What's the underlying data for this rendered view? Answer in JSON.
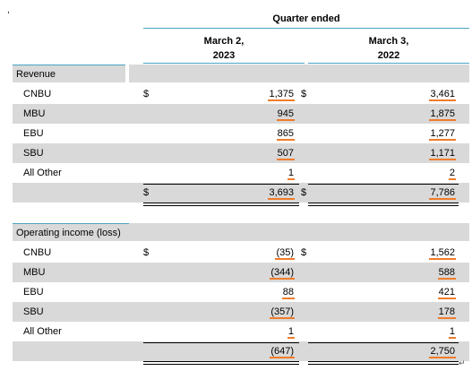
{
  "header": {
    "mark": ",",
    "period_title": "Quarter ended",
    "col1": {
      "line1": "March 2,",
      "line2": "2023"
    },
    "col2": {
      "line1": "March 3,",
      "line2": "2022"
    }
  },
  "revenue": {
    "section_label": "Revenue",
    "rows": [
      {
        "label": "CNBU",
        "d1": "$",
        "v1": "1,375",
        "d2": "$",
        "v2": "3,461"
      },
      {
        "label": "MBU",
        "d1": "",
        "v1": "945",
        "d2": "",
        "v2": "1,875"
      },
      {
        "label": "EBU",
        "d1": "",
        "v1": "865",
        "d2": "",
        "v2": "1,277"
      },
      {
        "label": "SBU",
        "d1": "",
        "v1": "507",
        "d2": "",
        "v2": "1,171"
      },
      {
        "label": "All Other",
        "d1": "",
        "v1": "1",
        "d2": "",
        "v2": "2"
      }
    ],
    "total": {
      "d1": "$",
      "v1": "3,693",
      "d2": "$",
      "v2": "7,786"
    }
  },
  "operating": {
    "section_label": "Operating income (loss)",
    "rows": [
      {
        "label": "CNBU",
        "d1": "$",
        "v1": "(35)",
        "d2": "$",
        "v2": "1,562"
      },
      {
        "label": "MBU",
        "d1": "",
        "v1": "(344)",
        "d2": "",
        "v2": "588"
      },
      {
        "label": "EBU",
        "d1": "",
        "v1": "88",
        "d2": "",
        "v2": "421"
      },
      {
        "label": "SBU",
        "d1": "",
        "v1": "(357)",
        "d2": "",
        "v2": "178"
      },
      {
        "label": "All Other",
        "d1": "",
        "v1": "1",
        "d2": "",
        "v2": "1"
      }
    ],
    "total": {
      "v1": "(647)",
      "v2": "2,750"
    }
  },
  "paragraph_mark": "↵"
}
